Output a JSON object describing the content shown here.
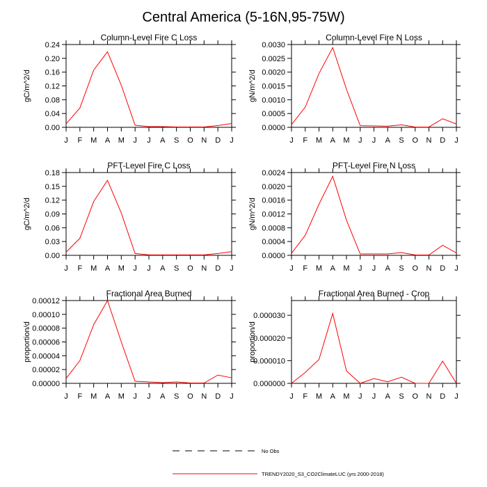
{
  "figure": {
    "title": "Central America (5-16N,95-75W)",
    "line_color": "#ff0000",
    "axis_color": "#000000"
  },
  "legend": {
    "entries": [
      {
        "label": "No Obs",
        "style": "dashed",
        "color": "#000000"
      },
      {
        "label": "TRENDY2020_S3_CO2ClimateLUC (yrs 2000-2018)",
        "style": "solid",
        "color": "#ff0000"
      }
    ]
  },
  "chart_data": [
    {
      "type": "line",
      "title": "Column-Level Fire C Loss",
      "xlabel": "",
      "ylabel": "gC/m^2/d",
      "categories": [
        "J",
        "F",
        "M",
        "A",
        "M",
        "J",
        "J",
        "A",
        "S",
        "O",
        "N",
        "D",
        "J"
      ],
      "ylim": [
        0,
        0.24
      ],
      "yticks": [
        "0.00",
        "0.04",
        "0.08",
        "0.12",
        "0.16",
        "0.20",
        "0.24"
      ],
      "series": [
        {
          "name": "TRENDY2020_S3_CO2ClimateLUC (yrs 2000-2018)",
          "values": [
            0.01,
            0.056,
            0.166,
            0.219,
            0.122,
            0.006,
            0.002,
            0.002,
            0.001,
            0.001,
            0.001,
            0.005,
            0.011
          ]
        }
      ]
    },
    {
      "type": "line",
      "title": "Column-Level Fire N Loss",
      "xlabel": "",
      "ylabel": "gN/m^2/d",
      "categories": [
        "J",
        "F",
        "M",
        "A",
        "M",
        "J",
        "J",
        "A",
        "S",
        "O",
        "N",
        "D",
        "J"
      ],
      "ylim": [
        0,
        0.003
      ],
      "yticks": [
        "0.0000",
        "0.0005",
        "0.0010",
        "0.0015",
        "0.0020",
        "0.0025",
        "0.0030"
      ],
      "series": [
        {
          "name": "TRENDY2020_S3_CO2ClimateLUC (yrs 2000-2018)",
          "values": [
            0.0001,
            0.00073,
            0.00195,
            0.00289,
            0.00138,
            6e-05,
            5e-05,
            4e-05,
            9e-05,
            1e-05,
            1e-05,
            0.00031,
            0.00012
          ]
        }
      ]
    },
    {
      "type": "line",
      "title": "PFT-Level Fire C Loss",
      "xlabel": "",
      "ylabel": "gC/m^2/d",
      "categories": [
        "J",
        "F",
        "M",
        "A",
        "M",
        "J",
        "J",
        "A",
        "S",
        "O",
        "N",
        "D",
        "J"
      ],
      "ylim": [
        0,
        0.18
      ],
      "yticks": [
        "0.00",
        "0.03",
        "0.06",
        "0.09",
        "0.12",
        "0.15",
        "0.18"
      ],
      "series": [
        {
          "name": "TRENDY2020_S3_CO2ClimateLUC (yrs 2000-2018)",
          "values": [
            0.007,
            0.037,
            0.117,
            0.163,
            0.092,
            0.004,
            0.001,
            0.001,
            0.001,
            0.001,
            0.001,
            0.004,
            0.008
          ]
        }
      ]
    },
    {
      "type": "line",
      "title": "PFT-Level Fire N Loss",
      "xlabel": "",
      "ylabel": "gN/m^2/d",
      "categories": [
        "J",
        "F",
        "M",
        "A",
        "M",
        "J",
        "J",
        "A",
        "S",
        "O",
        "N",
        "D",
        "J"
      ],
      "ylim": [
        0,
        0.0024
      ],
      "yticks": [
        "0.0000",
        "0.0004",
        "0.0008",
        "0.0012",
        "0.0016",
        "0.0020",
        "0.0024"
      ],
      "series": [
        {
          "name": "TRENDY2020_S3_CO2ClimateLUC (yrs 2000-2018)",
          "values": [
            6e-05,
            0.00058,
            0.00148,
            0.00229,
            0.00102,
            4e-05,
            4e-05,
            4e-05,
            8e-05,
            1e-05,
            1e-05,
            0.00029,
            7e-05
          ]
        }
      ]
    },
    {
      "type": "line",
      "title": "Fractional Area Burned",
      "xlabel": "",
      "ylabel": "proportion/d",
      "categories": [
        "J",
        "F",
        "M",
        "A",
        "M",
        "J",
        "J",
        "A",
        "S",
        "O",
        "N",
        "D",
        "J"
      ],
      "ylim": [
        0,
        0.00012
      ],
      "yticks": [
        "0.00000",
        "0.00002",
        "0.00004",
        "0.00006",
        "0.00008",
        "0.00010",
        "0.00012"
      ],
      "series": [
        {
          "name": "TRENDY2020_S3_CO2ClimateLUC (yrs 2000-2018)",
          "values": [
            7e-06,
            3.3e-05,
            8.5e-05,
            0.00012,
            6e-05,
            3e-06,
            2e-06,
            1e-06,
            2e-06,
            5e-07,
            5e-07,
            1.2e-05,
            8e-06
          ]
        }
      ]
    },
    {
      "type": "line",
      "title": "Fractional Area Burned - Crop",
      "xlabel": "",
      "ylabel": "proportion/d",
      "categories": [
        "J",
        "F",
        "M",
        "A",
        "M",
        "J",
        "J",
        "A",
        "S",
        "O",
        "N",
        "D",
        "J"
      ],
      "ylim": [
        0,
        3.65e-05
      ],
      "yticks": [
        "0.000000",
        "0.000010",
        "0.000020",
        "0.000030"
      ],
      "ytick_values": [
        0,
        1e-05,
        2e-05,
        3e-05
      ],
      "series": [
        {
          "name": "TRENDY2020_S3_CO2ClimateLUC (yrs 2000-2018)",
          "values": [
            0.0,
            4.8e-06,
            1.05e-05,
            3.08e-05,
            5.5e-06,
            0.0,
            2.1e-06,
            7e-07,
            2.7e-06,
            0.0,
            0.0,
            9.8e-06,
            0.0
          ]
        }
      ]
    }
  ]
}
